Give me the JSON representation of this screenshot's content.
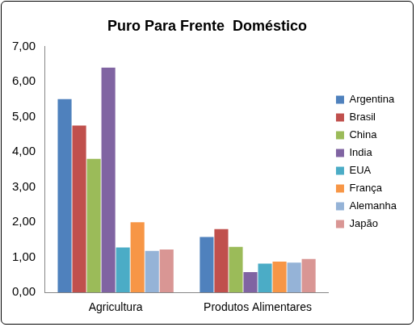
{
  "chart_data": {
    "type": "bar",
    "title": "Puro Para Frente  Doméstico",
    "categories": [
      "Agricultura",
      "Produtos Alimentares"
    ],
    "series": [
      {
        "name": "Argentina",
        "color": "#4f81bd",
        "values": [
          5.5,
          1.58
        ]
      },
      {
        "name": "Brasil",
        "color": "#c0504d",
        "values": [
          4.75,
          1.8
        ]
      },
      {
        "name": "China",
        "color": "#9bbb59",
        "values": [
          3.8,
          1.3
        ]
      },
      {
        "name": "India",
        "color": "#8064a2",
        "values": [
          6.4,
          0.58
        ]
      },
      {
        "name": "EUA",
        "color": "#4bacc6",
        "values": [
          1.28,
          0.82
        ]
      },
      {
        "name": "França",
        "color": "#f79646",
        "values": [
          2.0,
          0.88
        ]
      },
      {
        "name": "Alemanha",
        "color": "#95b3d7",
        "values": [
          1.18,
          0.85
        ]
      },
      {
        "name": "Japão",
        "color": "#d99694",
        "values": [
          1.22,
          0.95
        ]
      }
    ],
    "ylim": [
      0,
      7
    ],
    "yticks": [
      {
        "value": 0,
        "label": "0,00"
      },
      {
        "value": 1,
        "label": "1,00"
      },
      {
        "value": 2,
        "label": "2,00"
      },
      {
        "value": 3,
        "label": "3,00"
      },
      {
        "value": 4,
        "label": "4,00"
      },
      {
        "value": 5,
        "label": "5,00"
      },
      {
        "value": 6,
        "label": "6,00"
      },
      {
        "value": 7,
        "label": "7,00"
      }
    ],
    "grid": false,
    "legend": "right"
  }
}
